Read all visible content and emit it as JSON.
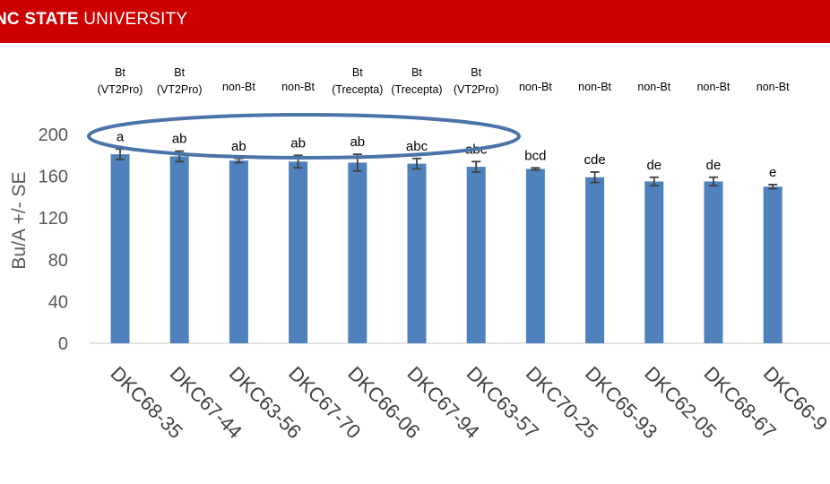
{
  "header": {
    "brand_bold": "NC STATE",
    "brand_regular": " UNIVERSITY",
    "background": "#cc0000"
  },
  "chart_data": {
    "type": "bar",
    "categories": [
      "DKC68-35",
      "DKC67-44",
      "DKC63-56",
      "DKC67-70",
      "DKC66-06",
      "DKC67-94",
      "DKC63-57",
      "DKC70-25",
      "DKC65-93",
      "DKC62-05",
      "DKC68-67",
      "DKC66-9"
    ],
    "values": [
      181,
      179,
      175,
      174,
      173,
      172,
      169,
      167,
      159,
      155,
      155,
      150
    ],
    "errors": [
      5,
      5,
      2,
      6,
      8,
      5,
      5,
      1,
      5,
      4,
      4,
      2
    ],
    "significance_letters": [
      "a",
      "ab",
      "ab",
      "ab",
      "ab",
      "abc",
      "abc",
      "bcd",
      "cde",
      "de",
      "de",
      "e"
    ],
    "traits": [
      [
        "Bt",
        "(VT2Pro)"
      ],
      [
        "Bt",
        "(VT2Pro)"
      ],
      [
        "non-Bt"
      ],
      [
        "non-Bt"
      ],
      [
        "Bt",
        "(Trecepta)"
      ],
      [
        "Bt",
        "(Trecepta)"
      ],
      [
        "Bt",
        "(VT2Pro)"
      ],
      [
        "non-Bt"
      ],
      [
        "non-Bt"
      ],
      [
        "non-Bt"
      ],
      [
        "non-Bt"
      ],
      [
        "non-Bt"
      ]
    ],
    "ylabel": "Bu/A +/- SE",
    "xlabel": "",
    "ylim": [
      0,
      200
    ],
    "yticks": [
      0,
      40,
      80,
      120,
      160,
      200
    ],
    "grid": false,
    "legend": "none",
    "bar_color": "#4f81bd",
    "error_bar_color": "#404040",
    "highlight_ellipse_color": "#4a74a8"
  }
}
